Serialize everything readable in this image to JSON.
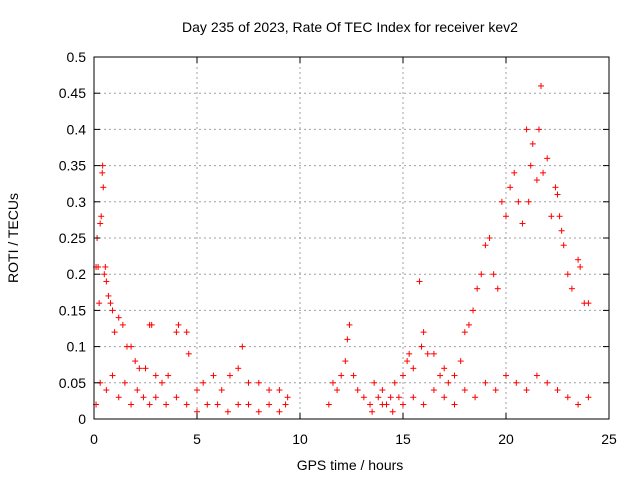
{
  "chart_data": {
    "type": "scatter",
    "title": "Day 235 of 2023, Rate Of TEC Index for receiver kev2",
    "xlabel": "GPS time / hours",
    "ylabel": "ROTI / TECUs",
    "xlim": [
      0,
      25
    ],
    "ylim": [
      0,
      0.5
    ],
    "x_ticks": [
      0,
      5,
      10,
      15,
      20,
      25
    ],
    "y_ticks": [
      0,
      0.05,
      0.1,
      0.15,
      0.2,
      0.25,
      0.3,
      0.35,
      0.4,
      0.45,
      0.5
    ],
    "x_tick_labels": [
      "0",
      "5",
      "10",
      "15",
      "20",
      "25"
    ],
    "y_tick_labels": [
      "0",
      "0.05",
      "0.1",
      "0.15",
      "0.2",
      "0.25",
      "0.3",
      "0.35",
      "0.4",
      "0.45",
      "0.5"
    ],
    "grid": true,
    "marker": "+",
    "marker_color": "#ff0000",
    "series": [
      {
        "values": [
          [
            0.1,
            0.21
          ],
          [
            0.15,
            0.25
          ],
          [
            0.2,
            0.21
          ],
          [
            0.25,
            0.16
          ],
          [
            0.3,
            0.27
          ],
          [
            0.35,
            0.28
          ],
          [
            0.4,
            0.34
          ],
          [
            0.42,
            0.35
          ],
          [
            0.45,
            0.32
          ],
          [
            0.5,
            0.2
          ],
          [
            0.55,
            0.21
          ],
          [
            0.6,
            0.19
          ],
          [
            0.7,
            0.17
          ],
          [
            0.8,
            0.16
          ],
          [
            0.9,
            0.15
          ],
          [
            1.0,
            0.12
          ],
          [
            1.2,
            0.14
          ],
          [
            1.4,
            0.13
          ],
          [
            1.6,
            0.1
          ],
          [
            1.8,
            0.1
          ],
          [
            2.0,
            0.08
          ],
          [
            2.2,
            0.07
          ],
          [
            2.5,
            0.07
          ],
          [
            2.7,
            0.13
          ],
          [
            2.8,
            0.13
          ],
          [
            3.0,
            0.06
          ],
          [
            3.3,
            0.05
          ],
          [
            3.6,
            0.06
          ],
          [
            4.0,
            0.12
          ],
          [
            4.1,
            0.13
          ],
          [
            4.5,
            0.12
          ],
          [
            4.6,
            0.09
          ],
          [
            5.0,
            0.04
          ],
          [
            5.3,
            0.05
          ],
          [
            5.8,
            0.06
          ],
          [
            6.2,
            0.04
          ],
          [
            6.6,
            0.06
          ],
          [
            7.0,
            0.07
          ],
          [
            7.2,
            0.1
          ],
          [
            7.5,
            0.05
          ],
          [
            8.0,
            0.05
          ],
          [
            8.5,
            0.04
          ],
          [
            9.0,
            0.04
          ],
          [
            9.4,
            0.03
          ],
          [
            0.1,
            0.02
          ],
          [
            0.3,
            0.05
          ],
          [
            0.6,
            0.04
          ],
          [
            0.9,
            0.06
          ],
          [
            1.2,
            0.03
          ],
          [
            1.5,
            0.05
          ],
          [
            1.8,
            0.02
          ],
          [
            2.1,
            0.04
          ],
          [
            2.4,
            0.03
          ],
          [
            2.7,
            0.02
          ],
          [
            3.0,
            0.03
          ],
          [
            3.5,
            0.02
          ],
          [
            4.0,
            0.03
          ],
          [
            4.5,
            0.02
          ],
          [
            5.0,
            0.01
          ],
          [
            5.5,
            0.02
          ],
          [
            6.0,
            0.02
          ],
          [
            6.5,
            0.01
          ],
          [
            7.0,
            0.02
          ],
          [
            7.5,
            0.02
          ],
          [
            8.0,
            0.01
          ],
          [
            8.5,
            0.02
          ],
          [
            9.0,
            0.01
          ],
          [
            9.3,
            0.02
          ],
          [
            11.4,
            0.02
          ],
          [
            11.6,
            0.05
          ],
          [
            11.8,
            0.04
          ],
          [
            12.0,
            0.06
          ],
          [
            12.2,
            0.08
          ],
          [
            12.3,
            0.11
          ],
          [
            12.4,
            0.13
          ],
          [
            12.6,
            0.06
          ],
          [
            12.8,
            0.04
          ],
          [
            13.1,
            0.03
          ],
          [
            13.4,
            0.02
          ],
          [
            13.6,
            0.05
          ],
          [
            13.8,
            0.03
          ],
          [
            14.0,
            0.04
          ],
          [
            14.2,
            0.02
          ],
          [
            14.4,
            0.03
          ],
          [
            14.6,
            0.05
          ],
          [
            14.8,
            0.03
          ],
          [
            15.0,
            0.06
          ],
          [
            15.2,
            0.08
          ],
          [
            15.3,
            0.09
          ],
          [
            15.5,
            0.07
          ],
          [
            15.8,
            0.19
          ],
          [
            15.9,
            0.1
          ],
          [
            16.0,
            0.12
          ],
          [
            16.2,
            0.09
          ],
          [
            16.5,
            0.09
          ],
          [
            16.8,
            0.06
          ],
          [
            17.0,
            0.07
          ],
          [
            17.2,
            0.05
          ],
          [
            17.5,
            0.06
          ],
          [
            17.8,
            0.08
          ],
          [
            18.0,
            0.12
          ],
          [
            18.2,
            0.13
          ],
          [
            18.4,
            0.15
          ],
          [
            18.6,
            0.18
          ],
          [
            18.8,
            0.2
          ],
          [
            19.0,
            0.24
          ],
          [
            19.2,
            0.25
          ],
          [
            19.4,
            0.2
          ],
          [
            19.6,
            0.18
          ],
          [
            19.8,
            0.3
          ],
          [
            20.0,
            0.28
          ],
          [
            20.2,
            0.32
          ],
          [
            20.4,
            0.34
          ],
          [
            20.6,
            0.3
          ],
          [
            20.8,
            0.27
          ],
          [
            21.0,
            0.4
          ],
          [
            21.1,
            0.3
          ],
          [
            21.2,
            0.35
          ],
          [
            21.3,
            0.38
          ],
          [
            21.5,
            0.33
          ],
          [
            21.6,
            0.4
          ],
          [
            21.7,
            0.46
          ],
          [
            21.8,
            0.34
          ],
          [
            22.0,
            0.36
          ],
          [
            22.2,
            0.28
          ],
          [
            22.4,
            0.32
          ],
          [
            22.5,
            0.31
          ],
          [
            22.6,
            0.28
          ],
          [
            22.7,
            0.26
          ],
          [
            22.8,
            0.24
          ],
          [
            23.0,
            0.2
          ],
          [
            23.2,
            0.18
          ],
          [
            23.5,
            0.22
          ],
          [
            23.6,
            0.21
          ],
          [
            23.8,
            0.16
          ],
          [
            24.0,
            0.16
          ],
          [
            13.5,
            0.01
          ],
          [
            14.0,
            0.02
          ],
          [
            14.5,
            0.01
          ],
          [
            15.0,
            0.02
          ],
          [
            15.5,
            0.03
          ],
          [
            16.0,
            0.02
          ],
          [
            16.5,
            0.04
          ],
          [
            17.0,
            0.03
          ],
          [
            17.5,
            0.02
          ],
          [
            18.0,
            0.04
          ],
          [
            18.5,
            0.03
          ],
          [
            19.0,
            0.05
          ],
          [
            19.5,
            0.04
          ],
          [
            20.0,
            0.06
          ],
          [
            20.5,
            0.05
          ],
          [
            21.0,
            0.04
          ],
          [
            21.5,
            0.06
          ],
          [
            22.0,
            0.05
          ],
          [
            22.5,
            0.04
          ],
          [
            23.0,
            0.03
          ],
          [
            23.5,
            0.02
          ],
          [
            24.0,
            0.03
          ]
        ]
      }
    ]
  }
}
